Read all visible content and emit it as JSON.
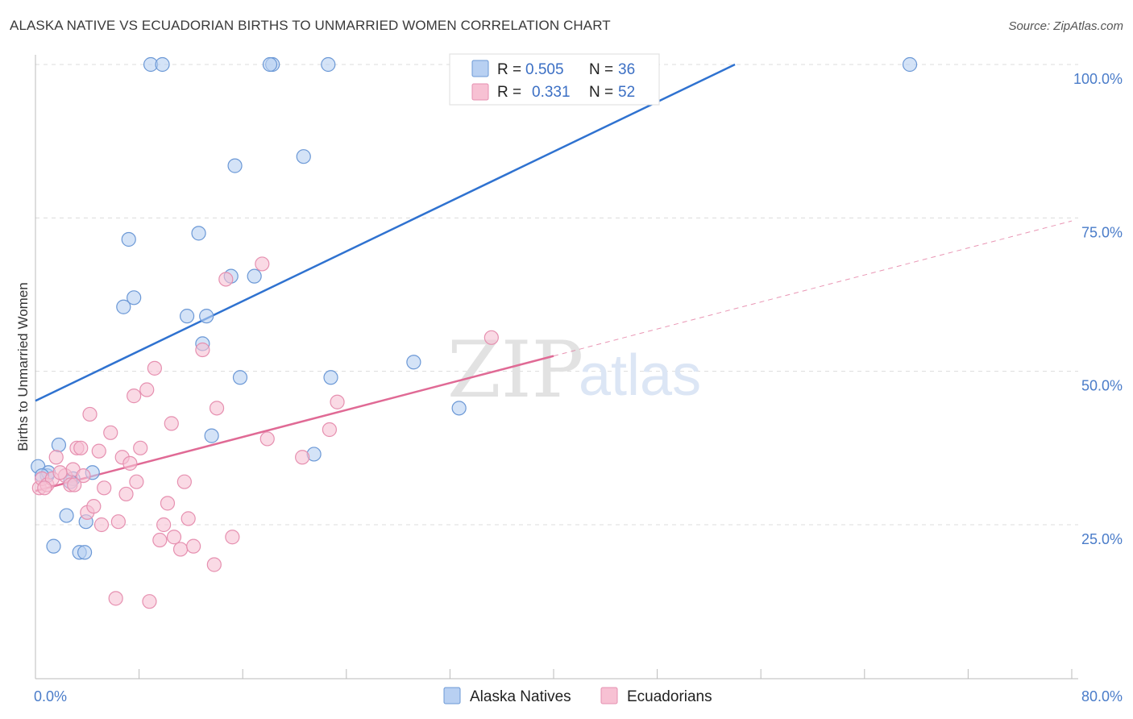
{
  "title": "ALASKA NATIVE VS ECUADORIAN BIRTHS TO UNMARRIED WOMEN CORRELATION CHART",
  "source": "Source: ZipAtlas.com",
  "watermark": {
    "zip": "ZIP",
    "atlas": "atlas"
  },
  "colors": {
    "blue_fill": "#b8d0f2",
    "blue_stroke": "#6b98d6",
    "blue_line": "#2f72d0",
    "pink_fill": "#f7c1d3",
    "pink_stroke": "#e690b0",
    "pink_line": "#e06a95",
    "grid": "#dcdcdc",
    "axis": "#bbbbbb",
    "accent_text": "#3b6fc4"
  },
  "legend": {
    "rows": [
      {
        "series": "Alaska Natives",
        "r_label": "R =",
        "r_value": "0.505",
        "n_label": "N =",
        "n_value": "36"
      },
      {
        "series": "Ecuadorians",
        "r_label": "R =",
        "r_value": "0.331",
        "n_label": "N =",
        "n_value": "52"
      }
    ]
  },
  "chart_data": {
    "type": "scatter",
    "title": "ALASKA NATIVE VS ECUADORIAN BIRTHS TO UNMARRIED WOMEN CORRELATION CHART",
    "xlabel": "",
    "ylabel": "Births to Unmarried Women",
    "xlim": [
      0,
      80
    ],
    "ylim": [
      0,
      102
    ],
    "x_tick_labels": [
      {
        "value": 0,
        "label": "0.0%"
      },
      {
        "value": 80,
        "label": "80.0%"
      }
    ],
    "x_minor_ticks": [
      0,
      8,
      16,
      24,
      32,
      40,
      48,
      56,
      64,
      72,
      80
    ],
    "y_ticks": [
      {
        "value": 25,
        "label": "25.0%"
      },
      {
        "value": 50,
        "label": "50.0%"
      },
      {
        "value": 75,
        "label": "75.0%"
      },
      {
        "value": 100,
        "label": "100.0%"
      }
    ],
    "grid": true,
    "legend_position": "top-center",
    "series": [
      {
        "name": "Alaska Natives",
        "color": "blue",
        "points": [
          [
            0.2,
            34.5
          ],
          [
            0.9,
            33.0
          ],
          [
            1.4,
            21.5
          ],
          [
            1.8,
            38.0
          ],
          [
            2.4,
            26.5
          ],
          [
            2.9,
            32.5
          ],
          [
            3.4,
            20.5
          ],
          [
            3.9,
            25.5
          ],
          [
            3.8,
            20.5
          ],
          [
            4.4,
            33.5
          ],
          [
            6.8,
            60.5
          ],
          [
            7.2,
            71.5
          ],
          [
            7.6,
            62.0
          ],
          [
            8.9,
            100.0
          ],
          [
            9.8,
            100.0
          ],
          [
            11.7,
            59.0
          ],
          [
            12.6,
            72.5
          ],
          [
            12.9,
            54.5
          ],
          [
            13.6,
            39.5
          ],
          [
            13.2,
            59.0
          ],
          [
            15.1,
            65.5
          ],
          [
            15.4,
            83.5
          ],
          [
            15.8,
            49.0
          ],
          [
            16.9,
            65.5
          ],
          [
            18.3,
            100.0
          ],
          [
            18.1,
            100.0
          ],
          [
            20.7,
            85.0
          ],
          [
            21.5,
            36.5
          ],
          [
            22.6,
            100.0
          ],
          [
            22.8,
            49.0
          ],
          [
            29.2,
            51.5
          ],
          [
            32.7,
            44.0
          ],
          [
            67.5,
            100.0
          ],
          [
            1.0,
            33.5
          ],
          [
            2.7,
            32.0
          ],
          [
            0.5,
            33.0
          ]
        ],
        "trend": {
          "x_start": 0,
          "y_start": 45.2,
          "x_end": 54,
          "y_end": 100
        }
      },
      {
        "name": "Ecuadorians",
        "color": "pink",
        "points": [
          [
            0.3,
            31.0
          ],
          [
            0.5,
            32.5
          ],
          [
            0.9,
            31.5
          ],
          [
            1.3,
            32.5
          ],
          [
            1.6,
            36.0
          ],
          [
            2.3,
            33.0
          ],
          [
            2.7,
            31.5
          ],
          [
            2.9,
            34.0
          ],
          [
            3.2,
            37.5
          ],
          [
            3.5,
            37.5
          ],
          [
            3.7,
            33.0
          ],
          [
            4.0,
            27.0
          ],
          [
            4.2,
            43.0
          ],
          [
            4.5,
            28.0
          ],
          [
            4.9,
            37.0
          ],
          [
            5.1,
            25.0
          ],
          [
            5.3,
            31.0
          ],
          [
            5.8,
            40.0
          ],
          [
            6.2,
            13.0
          ],
          [
            6.4,
            25.5
          ],
          [
            6.7,
            36.0
          ],
          [
            7.0,
            30.0
          ],
          [
            7.3,
            35.0
          ],
          [
            7.6,
            46.0
          ],
          [
            7.8,
            32.0
          ],
          [
            8.1,
            37.5
          ],
          [
            8.6,
            47.0
          ],
          [
            8.8,
            12.5
          ],
          [
            9.2,
            50.5
          ],
          [
            9.6,
            22.5
          ],
          [
            9.9,
            25.0
          ],
          [
            10.2,
            28.5
          ],
          [
            10.5,
            41.5
          ],
          [
            10.7,
            23.0
          ],
          [
            11.2,
            21.0
          ],
          [
            11.5,
            32.0
          ],
          [
            11.8,
            26.0
          ],
          [
            12.2,
            21.5
          ],
          [
            12.9,
            53.5
          ],
          [
            13.8,
            18.5
          ],
          [
            14.0,
            44.0
          ],
          [
            14.7,
            65.0
          ],
          [
            15.2,
            23.0
          ],
          [
            17.5,
            67.5
          ],
          [
            17.9,
            39.0
          ],
          [
            20.6,
            36.0
          ],
          [
            22.7,
            40.5
          ],
          [
            23.3,
            45.0
          ],
          [
            35.2,
            55.5
          ],
          [
            0.7,
            31.0
          ],
          [
            1.9,
            33.5
          ],
          [
            3.0,
            31.5
          ]
        ],
        "trend": {
          "x_start": 0,
          "y_start": 30.5,
          "x_end": 80,
          "y_end": 74.5,
          "solid_until_x": 40
        }
      }
    ]
  }
}
